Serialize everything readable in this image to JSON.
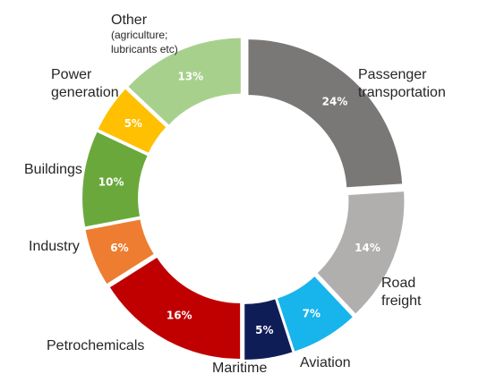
{
  "chart_data": {
    "type": "pie",
    "style": "donut",
    "title": "",
    "segments": [
      {
        "label": [
          "Passenger",
          "transportation"
        ],
        "value": 24,
        "display": "24%",
        "color": "#7a7777"
      },
      {
        "label": [
          "Road",
          "freight"
        ],
        "value": 14,
        "display": "14%",
        "color": "#b1aeae"
      },
      {
        "label": [
          "Aviation"
        ],
        "value": 7,
        "display": "7%",
        "color": "#18b4ec"
      },
      {
        "label": [
          "Maritime"
        ],
        "value": 5,
        "display": "5%",
        "color": "#0f1d57"
      },
      {
        "label": [
          "Petrochemicals"
        ],
        "value": 16,
        "display": "16%",
        "color": "#c00000"
      },
      {
        "label": [
          "Industry"
        ],
        "value": 6,
        "display": "6%",
        "color": "#ee7d31"
      },
      {
        "label": [
          "Buildings"
        ],
        "value": 10,
        "display": "10%",
        "color": "#6ba83c"
      },
      {
        "label": [
          "Power",
          "generation"
        ],
        "value": 5,
        "display": "5%",
        "color": "#fec000"
      },
      {
        "label": [
          "Other",
          "(agriculture;",
          "lubricants etc)"
        ],
        "value": 13,
        "display": "13%",
        "color": "#a8d08d"
      }
    ]
  }
}
